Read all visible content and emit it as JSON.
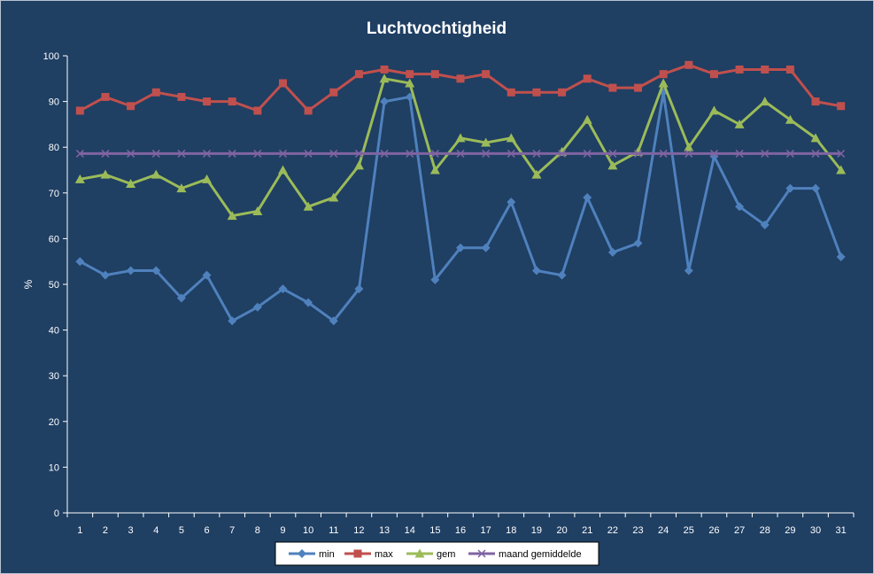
{
  "chart_data": {
    "type": "line",
    "title": "Luchtvochtigheid",
    "xlabel": "",
    "ylabel": "%",
    "ylim": [
      0,
      100
    ],
    "yticks": [
      0,
      10,
      20,
      30,
      40,
      50,
      60,
      70,
      80,
      90,
      100
    ],
    "categories": [
      "1",
      "2",
      "3",
      "4",
      "5",
      "6",
      "7",
      "8",
      "9",
      "10",
      "11",
      "12",
      "13",
      "14",
      "15",
      "16",
      "17",
      "18",
      "19",
      "20",
      "21",
      "22",
      "23",
      "24",
      "25",
      "26",
      "27",
      "28",
      "29",
      "30",
      "31"
    ],
    "grid": false,
    "legend_position": "bottom",
    "series": [
      {
        "name": "min",
        "color": "#4f81bd",
        "marker": "diamond",
        "values": [
          55,
          52,
          53,
          53,
          47,
          52,
          42,
          45,
          49,
          46,
          42,
          49,
          90,
          91,
          51,
          58,
          58,
          68,
          53,
          52,
          69,
          57,
          59,
          92,
          53,
          78,
          67,
          63,
          71,
          71,
          56
        ]
      },
      {
        "name": "max",
        "color": "#c0504d",
        "marker": "square",
        "values": [
          88,
          91,
          89,
          92,
          91,
          90,
          90,
          88,
          94,
          88,
          92,
          96,
          97,
          96,
          96,
          95,
          96,
          92,
          92,
          92,
          95,
          93,
          93,
          96,
          98,
          96,
          97,
          97,
          97,
          90,
          89
        ]
      },
      {
        "name": "gem",
        "color": "#9bbb59",
        "marker": "triangle",
        "values": [
          73,
          74,
          72,
          74,
          71,
          73,
          65,
          66,
          75,
          67,
          69,
          76,
          95,
          94,
          75,
          82,
          81,
          82,
          74,
          79,
          86,
          76,
          79,
          94,
          80,
          88,
          85,
          90,
          86,
          82,
          75
        ]
      },
      {
        "name": "maand gemiddelde",
        "color": "#8064a2",
        "marker": "x",
        "values": [
          78.6,
          78.6,
          78.6,
          78.6,
          78.6,
          78.6,
          78.6,
          78.6,
          78.6,
          78.6,
          78.6,
          78.6,
          78.6,
          78.6,
          78.6,
          78.6,
          78.6,
          78.6,
          78.6,
          78.6,
          78.6,
          78.6,
          78.6,
          78.6,
          78.6,
          78.6,
          78.6,
          78.6,
          78.6,
          78.6,
          78.6
        ]
      }
    ]
  }
}
